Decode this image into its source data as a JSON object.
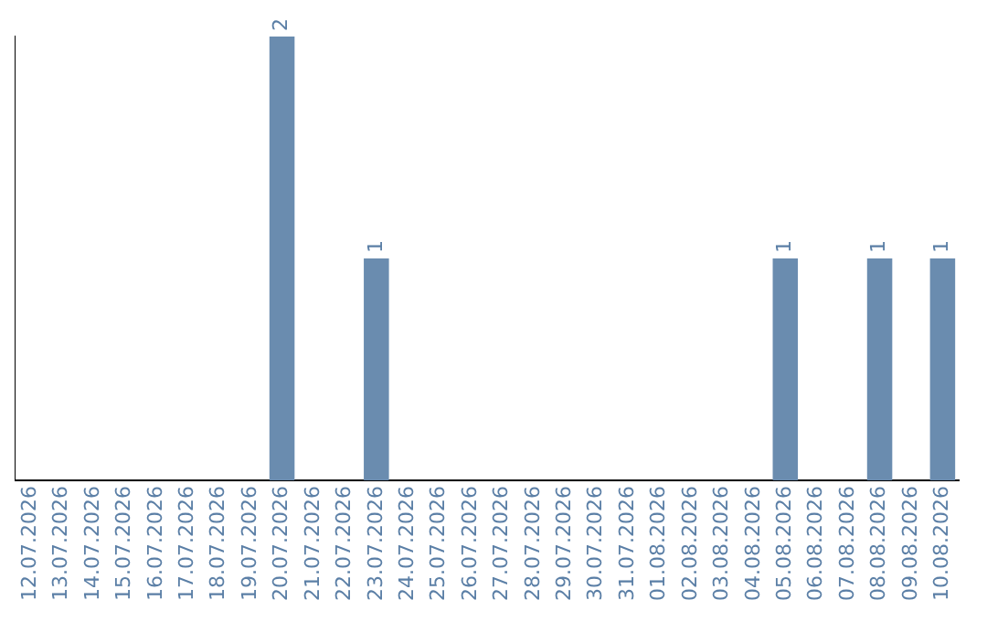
{
  "chart_data": {
    "type": "bar",
    "categories": [
      "12.07.2026",
      "13.07.2026",
      "14.07.2026",
      "15.07.2026",
      "16.07.2026",
      "17.07.2026",
      "18.07.2026",
      "19.07.2026",
      "20.07.2026",
      "21.07.2026",
      "22.07.2026",
      "23.07.2026",
      "24.07.2026",
      "25.07.2026",
      "26.07.2026",
      "27.07.2026",
      "28.07.2026",
      "29.07.2026",
      "30.07.2026",
      "31.07.2026",
      "01.08.2026",
      "02.08.2026",
      "03.08.2026",
      "04.08.2026",
      "05.08.2026",
      "06.08.2026",
      "07.08.2026",
      "08.08.2026",
      "09.08.2026",
      "10.08.2026"
    ],
    "values": [
      0,
      0,
      0,
      0,
      0,
      0,
      0,
      0,
      2,
      0,
      0,
      1,
      0,
      0,
      0,
      0,
      0,
      0,
      0,
      0,
      0,
      0,
      0,
      0,
      1,
      0,
      0,
      1,
      0,
      1
    ],
    "value_labels": [
      null,
      null,
      null,
      null,
      null,
      null,
      null,
      null,
      "2",
      null,
      null,
      "1",
      null,
      null,
      null,
      null,
      null,
      null,
      null,
      null,
      null,
      null,
      null,
      null,
      "1",
      null,
      null,
      "1",
      null,
      "1"
    ],
    "color": "#6a8caf",
    "tick_labels": "x",
    "grid": false,
    "legend": false
  }
}
